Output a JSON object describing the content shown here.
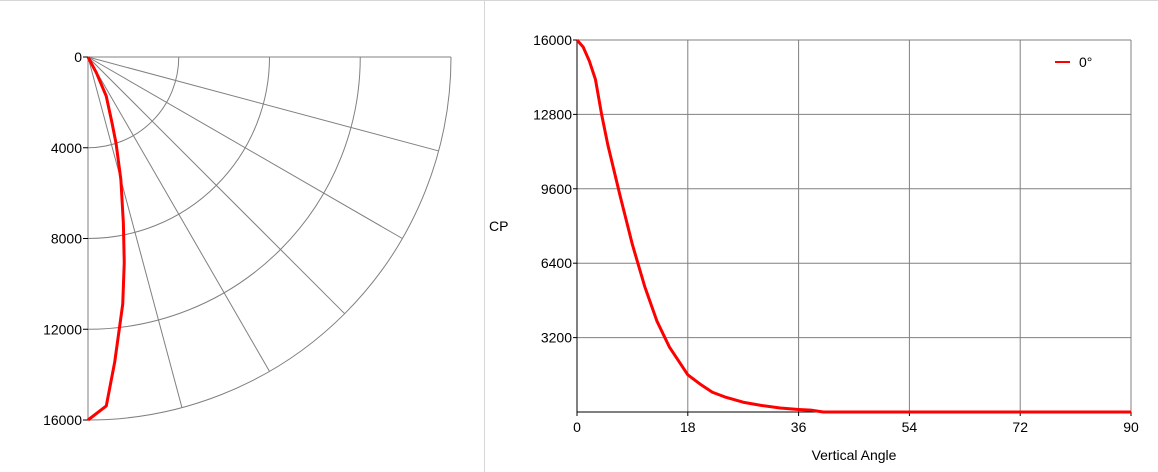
{
  "chart_data": [
    {
      "type": "polar",
      "r_ticks": [
        0,
        4000,
        8000,
        12000,
        16000
      ],
      "r_max": 16000,
      "angle_spokes_deg": [
        0,
        15,
        30,
        45,
        60,
        75,
        90
      ],
      "series": [
        {
          "color": "#ff0000",
          "angles_deg": [
            0,
            3,
            5,
            8,
            10,
            12,
            15,
            18,
            20,
            25,
            28
          ],
          "values": [
            16000,
            15400,
            13500,
            11000,
            9200,
            7500,
            5600,
            4000,
            3100,
            1900,
            800
          ]
        }
      ]
    },
    {
      "type": "line",
      "xlabel": "Vertical Angle",
      "ylabel": "CP",
      "xlim": [
        0,
        90
      ],
      "ylim": [
        0,
        16000
      ],
      "x_ticks": [
        "0",
        "18",
        "36",
        "54",
        "72",
        "90"
      ],
      "y_ticks": [
        "3200",
        "6400",
        "9600",
        "12800",
        "16000"
      ],
      "grid": true,
      "legend_position": "top-right",
      "series": [
        {
          "name": "0°",
          "color": "#ff0000",
          "x": [
            0,
            1,
            2,
            3,
            4,
            5,
            7,
            9,
            11,
            13,
            15,
            18,
            20,
            22,
            24,
            27,
            30,
            33,
            36,
            38,
            40,
            45,
            54,
            72,
            90
          ],
          "y": [
            16000,
            15700,
            15100,
            14300,
            12800,
            11500,
            9300,
            7200,
            5400,
            3900,
            2800,
            1600,
            1200,
            850,
            650,
            420,
            280,
            170,
            110,
            80,
            0,
            0,
            0,
            0,
            0
          ]
        }
      ]
    }
  ]
}
